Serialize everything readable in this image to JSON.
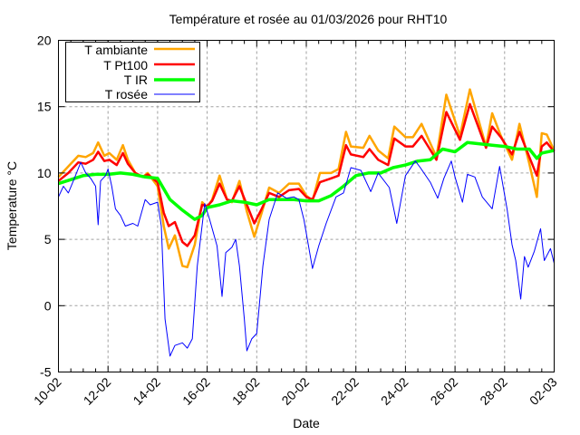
{
  "chart_data": {
    "type": "line",
    "title": "Température et rosée au 01/03/2026 pour RHT10",
    "xlabel": "Date",
    "ylabel": "Temperature °C",
    "xlim": [
      0,
      20
    ],
    "ylim": [
      -5,
      20
    ],
    "yticks": [
      -5,
      0,
      5,
      10,
      15,
      20
    ],
    "xticks": [
      {
        "day": 0,
        "label": "10-02"
      },
      {
        "day": 2,
        "label": "12-02"
      },
      {
        "day": 4,
        "label": "14-02"
      },
      {
        "day": 6,
        "label": "16-02"
      },
      {
        "day": 8,
        "label": "18-02"
      },
      {
        "day": 10,
        "label": "20-02"
      },
      {
        "day": 12,
        "label": "22-02"
      },
      {
        "day": 14,
        "label": "24-02"
      },
      {
        "day": 16,
        "label": "26-02"
      },
      {
        "day": 18,
        "label": "28-02"
      },
      {
        "day": 20,
        "label": "02-03"
      }
    ],
    "x_unit": "days since 10-02",
    "grid": true,
    "legend_placement": "top-left",
    "series": [
      {
        "name": "T ambiante",
        "color": "#ffa500",
        "width": 2.5,
        "points": [
          [
            0,
            9.7
          ],
          [
            0.4,
            10.5
          ],
          [
            0.8,
            11.3
          ],
          [
            1.1,
            11.2
          ],
          [
            1.4,
            11.5
          ],
          [
            1.6,
            12.3
          ],
          [
            1.85,
            11.3
          ],
          [
            2.05,
            11.5
          ],
          [
            2.35,
            11.0
          ],
          [
            2.6,
            12.1
          ],
          [
            2.8,
            11.0
          ],
          [
            3.1,
            10.0
          ],
          [
            3.4,
            9.7
          ],
          [
            3.6,
            10.0
          ],
          [
            4.0,
            9.0
          ],
          [
            4.25,
            6.0
          ],
          [
            4.45,
            4.3
          ],
          [
            4.7,
            5.3
          ],
          [
            5.0,
            3.0
          ],
          [
            5.2,
            2.9
          ],
          [
            5.5,
            4.6
          ],
          [
            5.8,
            7.8
          ],
          [
            6.0,
            7.4
          ],
          [
            6.2,
            8.0
          ],
          [
            6.5,
            9.8
          ],
          [
            6.8,
            8.0
          ],
          [
            7.0,
            7.8
          ],
          [
            7.3,
            9.4
          ],
          [
            7.6,
            7.1
          ],
          [
            7.9,
            5.2
          ],
          [
            8.2,
            7.0
          ],
          [
            8.5,
            8.9
          ],
          [
            8.9,
            8.5
          ],
          [
            9.3,
            9.2
          ],
          [
            9.7,
            9.2
          ],
          [
            10.0,
            8.3
          ],
          [
            10.25,
            7.9
          ],
          [
            10.55,
            10.0
          ],
          [
            11.0,
            10.0
          ],
          [
            11.3,
            10.3
          ],
          [
            11.6,
            13.1
          ],
          [
            11.8,
            12.0
          ],
          [
            12.3,
            11.9
          ],
          [
            12.55,
            12.8
          ],
          [
            12.9,
            11.7
          ],
          [
            13.3,
            11.1
          ],
          [
            13.55,
            13.5
          ],
          [
            14.0,
            12.7
          ],
          [
            14.3,
            12.7
          ],
          [
            14.65,
            13.7
          ],
          [
            15.25,
            11.2
          ],
          [
            15.65,
            15.9
          ],
          [
            16.2,
            12.8
          ],
          [
            16.6,
            16.3
          ],
          [
            17.25,
            12.0
          ],
          [
            17.5,
            14.5
          ],
          [
            17.85,
            12.8
          ],
          [
            18.3,
            11.0
          ],
          [
            18.6,
            13.7
          ],
          [
            19.0,
            10.7
          ],
          [
            19.3,
            8.2
          ],
          [
            19.5,
            13.0
          ],
          [
            19.7,
            12.9
          ],
          [
            20,
            11.7
          ]
        ]
      },
      {
        "name": "T Pt100",
        "color": "#ff0000",
        "width": 2.5,
        "points": [
          [
            0,
            9.4
          ],
          [
            0.4,
            10.0
          ],
          [
            0.8,
            10.8
          ],
          [
            1.1,
            10.7
          ],
          [
            1.4,
            11.0
          ],
          [
            1.6,
            11.6
          ],
          [
            1.85,
            10.9
          ],
          [
            2.05,
            11.0
          ],
          [
            2.35,
            10.6
          ],
          [
            2.6,
            11.5
          ],
          [
            2.8,
            10.7
          ],
          [
            3.1,
            10.0
          ],
          [
            3.4,
            9.7
          ],
          [
            3.6,
            9.9
          ],
          [
            4.0,
            9.3
          ],
          [
            4.25,
            7.0
          ],
          [
            4.45,
            6.0
          ],
          [
            4.7,
            6.3
          ],
          [
            5.0,
            4.8
          ],
          [
            5.2,
            4.5
          ],
          [
            5.5,
            5.3
          ],
          [
            5.8,
            7.6
          ],
          [
            6.0,
            7.5
          ],
          [
            6.2,
            7.9
          ],
          [
            6.5,
            9.2
          ],
          [
            6.8,
            8.0
          ],
          [
            7.0,
            7.9
          ],
          [
            7.3,
            9.0
          ],
          [
            7.6,
            7.6
          ],
          [
            7.9,
            6.2
          ],
          [
            8.2,
            7.3
          ],
          [
            8.5,
            8.5
          ],
          [
            8.9,
            8.2
          ],
          [
            9.3,
            8.7
          ],
          [
            9.7,
            8.8
          ],
          [
            10.0,
            8.2
          ],
          [
            10.25,
            8.0
          ],
          [
            10.55,
            9.3
          ],
          [
            11.0,
            9.6
          ],
          [
            11.3,
            9.8
          ],
          [
            11.6,
            12.1
          ],
          [
            11.8,
            11.4
          ],
          [
            12.3,
            11.2
          ],
          [
            12.55,
            11.8
          ],
          [
            12.9,
            11.0
          ],
          [
            13.3,
            10.6
          ],
          [
            13.55,
            12.6
          ],
          [
            14.0,
            12.0
          ],
          [
            14.3,
            12.0
          ],
          [
            14.65,
            12.8
          ],
          [
            15.25,
            11.0
          ],
          [
            15.65,
            14.6
          ],
          [
            16.2,
            12.5
          ],
          [
            16.6,
            15.2
          ],
          [
            17.25,
            11.9
          ],
          [
            17.5,
            13.5
          ],
          [
            17.85,
            12.7
          ],
          [
            18.3,
            11.4
          ],
          [
            18.6,
            13.1
          ],
          [
            19.0,
            11.2
          ],
          [
            19.3,
            9.8
          ],
          [
            19.5,
            12.0
          ],
          [
            19.7,
            12.3
          ],
          [
            20,
            11.6
          ]
        ]
      },
      {
        "name": "T IR",
        "color": "#00ff00",
        "width": 3.5,
        "points": [
          [
            0,
            9.2
          ],
          [
            0.5,
            9.5
          ],
          [
            1,
            9.8
          ],
          [
            1.5,
            9.9
          ],
          [
            2,
            9.9
          ],
          [
            2.5,
            10.0
          ],
          [
            3,
            9.9
          ],
          [
            3.5,
            9.7
          ],
          [
            4,
            9.6
          ],
          [
            4.5,
            8.0
          ],
          [
            5,
            7.2
          ],
          [
            5.5,
            6.5
          ],
          [
            5.8,
            6.8
          ],
          [
            6,
            7.4
          ],
          [
            6.5,
            7.6
          ],
          [
            7,
            7.9
          ],
          [
            7.5,
            7.8
          ],
          [
            8,
            7.6
          ],
          [
            8.5,
            8.0
          ],
          [
            9,
            8.0
          ],
          [
            9.5,
            8.0
          ],
          [
            10,
            7.9
          ],
          [
            10.5,
            7.9
          ],
          [
            11,
            8.3
          ],
          [
            11.5,
            9.0
          ],
          [
            12,
            9.8
          ],
          [
            12.5,
            10.0
          ],
          [
            13,
            10.0
          ],
          [
            13.5,
            10.4
          ],
          [
            14,
            10.6
          ],
          [
            14.5,
            10.9
          ],
          [
            15,
            11.0
          ],
          [
            15.5,
            11.8
          ],
          [
            16,
            11.6
          ],
          [
            16.5,
            12.3
          ],
          [
            17,
            12.2
          ],
          [
            17.5,
            12.1
          ],
          [
            18,
            12.0
          ],
          [
            18.5,
            11.8
          ],
          [
            19,
            11.8
          ],
          [
            19.3,
            11.1
          ],
          [
            19.5,
            11.5
          ],
          [
            20,
            11.7
          ]
        ]
      },
      {
        "name": "T rosée",
        "color": "#0000ff",
        "width": 1,
        "points": [
          [
            0,
            8.2
          ],
          [
            0.2,
            9.0
          ],
          [
            0.4,
            8.5
          ],
          [
            0.6,
            9.4
          ],
          [
            0.9,
            10.8
          ],
          [
            1.1,
            10.0
          ],
          [
            1.3,
            9.6
          ],
          [
            1.5,
            9.0
          ],
          [
            1.6,
            6.1
          ],
          [
            1.7,
            9.4
          ],
          [
            1.9,
            9.8
          ],
          [
            2.0,
            10.3
          ],
          [
            2.15,
            9.0
          ],
          [
            2.3,
            7.3
          ],
          [
            2.5,
            6.8
          ],
          [
            2.7,
            6.0
          ],
          [
            3.0,
            6.2
          ],
          [
            3.2,
            6.0
          ],
          [
            3.5,
            8.0
          ],
          [
            3.7,
            7.6
          ],
          [
            4.0,
            7.8
          ],
          [
            4.15,
            6.0
          ],
          [
            4.3,
            -1.0
          ],
          [
            4.5,
            -3.8
          ],
          [
            4.7,
            -3.0
          ],
          [
            5.0,
            -2.8
          ],
          [
            5.2,
            -3.2
          ],
          [
            5.4,
            -2.5
          ],
          [
            5.6,
            3.0
          ],
          [
            5.9,
            7.7
          ],
          [
            6.1,
            6.5
          ],
          [
            6.4,
            4.5
          ],
          [
            6.6,
            0.7
          ],
          [
            6.75,
            4.0
          ],
          [
            7.0,
            4.4
          ],
          [
            7.15,
            5.0
          ],
          [
            7.3,
            3.0
          ],
          [
            7.5,
            -1.0
          ],
          [
            7.6,
            -3.4
          ],
          [
            7.8,
            -2.5
          ],
          [
            8.0,
            -2.1
          ],
          [
            8.25,
            3.0
          ],
          [
            8.5,
            6.5
          ],
          [
            8.85,
            8.5
          ],
          [
            9.2,
            8.1
          ],
          [
            9.5,
            8.2
          ],
          [
            9.7,
            8.0
          ],
          [
            9.9,
            6.5
          ],
          [
            10.25,
            2.8
          ],
          [
            10.5,
            4.5
          ],
          [
            10.8,
            6.2
          ],
          [
            11.2,
            8.2
          ],
          [
            11.5,
            8.5
          ],
          [
            11.8,
            10.4
          ],
          [
            12.2,
            10.2
          ],
          [
            12.6,
            8.6
          ],
          [
            12.9,
            10.0
          ],
          [
            13.35,
            8.9
          ],
          [
            13.65,
            6.2
          ],
          [
            14.0,
            9.8
          ],
          [
            14.4,
            10.9
          ],
          [
            14.6,
            10.4
          ],
          [
            15.0,
            9.3
          ],
          [
            15.3,
            8.1
          ],
          [
            15.55,
            9.6
          ],
          [
            15.85,
            10.9
          ],
          [
            16.0,
            9.7
          ],
          [
            16.3,
            7.8
          ],
          [
            16.5,
            9.9
          ],
          [
            16.8,
            9.7
          ],
          [
            17.1,
            8.2
          ],
          [
            17.5,
            7.3
          ],
          [
            17.8,
            10.5
          ],
          [
            18.1,
            7.3
          ],
          [
            18.3,
            4.6
          ],
          [
            18.45,
            3.4
          ],
          [
            18.65,
            0.5
          ],
          [
            18.8,
            3.7
          ],
          [
            18.95,
            2.9
          ],
          [
            19.2,
            4.1
          ],
          [
            19.45,
            5.8
          ],
          [
            19.6,
            3.4
          ],
          [
            19.85,
            4.3
          ],
          [
            20,
            3.2
          ]
        ]
      }
    ]
  }
}
